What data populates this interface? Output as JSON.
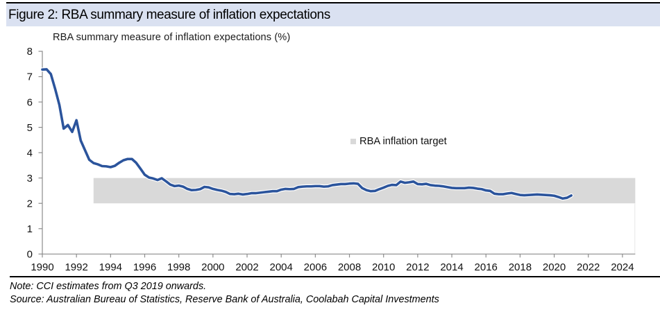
{
  "figure": {
    "title": "Figure 2: RBA summary measure of inflation expectations"
  },
  "chart_data": {
    "type": "line",
    "title": "RBA summary measure of inflation expectations (%)",
    "xlabel": "",
    "ylabel": "",
    "xlim": [
      1990,
      2024.75
    ],
    "ylim": [
      0,
      8
    ],
    "x_ticks": [
      1990,
      1992,
      1994,
      1996,
      1998,
      2000,
      2002,
      2004,
      2006,
      2008,
      2010,
      2012,
      2014,
      2016,
      2018,
      2020,
      2022,
      2024
    ],
    "y_ticks": [
      0,
      1,
      2,
      3,
      4,
      5,
      6,
      7,
      8
    ],
    "grid": false,
    "legend_position": "center-right",
    "band": {
      "label": "RBA inflation target",
      "y_from": 2,
      "y_to": 3,
      "x_from": 1993,
      "x_to": 2024.75,
      "color": "#d9d9d9"
    },
    "x_start": 1990.0,
    "x_step_years": 0.25,
    "series": [
      {
        "name": "RBA summary measure of inflation expectations (%)",
        "color": "#2b549c",
        "values": [
          7.28,
          7.29,
          7.1,
          6.52,
          5.88,
          4.95,
          5.09,
          4.82,
          5.28,
          4.48,
          4.1,
          3.72,
          3.59,
          3.54,
          3.47,
          3.46,
          3.43,
          3.48,
          3.6,
          3.7,
          3.75,
          3.75,
          3.6,
          3.37,
          3.13,
          3.02,
          2.98,
          2.92,
          2.99,
          2.87,
          2.74,
          2.68,
          2.7,
          2.66,
          2.57,
          2.52,
          2.53,
          2.56,
          2.65,
          2.63,
          2.57,
          2.53,
          2.5,
          2.45,
          2.37,
          2.36,
          2.38,
          2.35,
          2.37,
          2.4,
          2.4,
          2.42,
          2.44,
          2.46,
          2.48,
          2.48,
          2.54,
          2.57,
          2.56,
          2.57,
          2.64,
          2.66,
          2.67,
          2.67,
          2.68,
          2.68,
          2.66,
          2.67,
          2.72,
          2.74,
          2.76,
          2.76,
          2.78,
          2.79,
          2.77,
          2.6,
          2.52,
          2.48,
          2.49,
          2.56,
          2.62,
          2.69,
          2.73,
          2.72,
          2.86,
          2.81,
          2.83,
          2.86,
          2.76,
          2.75,
          2.77,
          2.72,
          2.7,
          2.69,
          2.67,
          2.64,
          2.61,
          2.6,
          2.6,
          2.6,
          2.62,
          2.61,
          2.58,
          2.56,
          2.51,
          2.49,
          2.38,
          2.36,
          2.36,
          2.39,
          2.41,
          2.37,
          2.33,
          2.32,
          2.33,
          2.34,
          2.35,
          2.34,
          2.33,
          2.32,
          2.3,
          2.25,
          2.19,
          2.22,
          2.31
        ]
      }
    ]
  },
  "legend": {
    "label": "RBA inflation target"
  },
  "notes": {
    "note": "Note: CCI estimates from Q3 2019 onwards.",
    "source": "Source: Australian Bureau of Statistics, Reserve Bank of Australia, Coolabah Capital Investments"
  },
  "colors": {
    "title_strip_background": "#dae1f1",
    "line": "#2b549c",
    "band": "#d9d9d9",
    "axis": "#8c8c8c",
    "rule": "#000000"
  }
}
